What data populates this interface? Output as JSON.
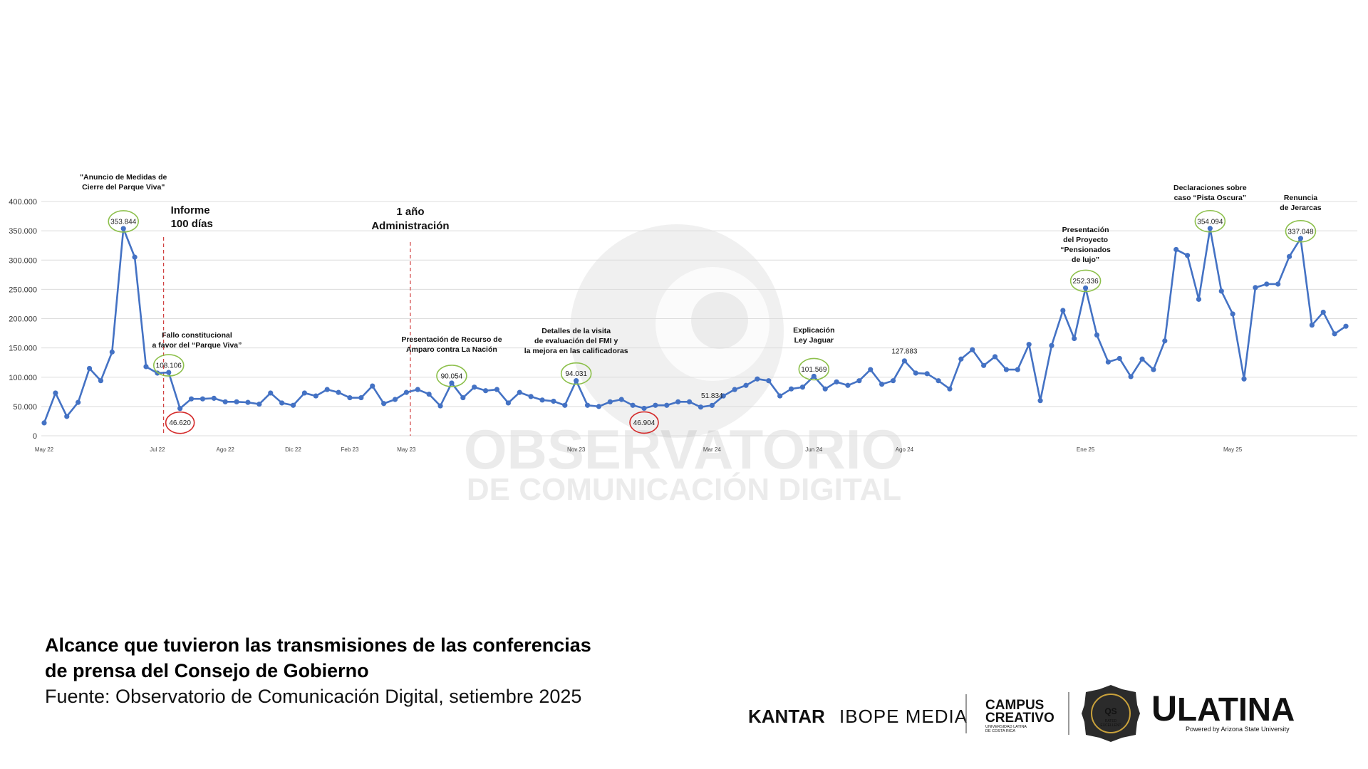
{
  "chart_data": {
    "type": "line",
    "categories": [
      "May 22",
      null,
      null,
      null,
      null,
      null,
      null,
      null,
      null,
      null,
      "Jul 22",
      null,
      null,
      null,
      null,
      null,
      "Ago 22",
      null,
      null,
      null,
      null,
      null,
      "Dic 22",
      null,
      null,
      null,
      null,
      "Feb 23",
      null,
      null,
      null,
      null,
      "May 23",
      null,
      null,
      null,
      null,
      null,
      null,
      null,
      null,
      null,
      null,
      null,
      null,
      null,
      null,
      "Nov 23",
      null,
      null,
      null,
      null,
      null,
      null,
      null,
      null,
      null,
      null,
      null,
      "Mar 24",
      null,
      null,
      null,
      null,
      null,
      null,
      null,
      null,
      "Jun 24",
      null,
      null,
      null,
      null,
      null,
      null,
      null,
      "Ago 24",
      null,
      null,
      null,
      null,
      null,
      null,
      null,
      null,
      null,
      null,
      null,
      null,
      null,
      null,
      null,
      "Ene 25",
      null,
      null,
      null,
      null,
      null,
      null,
      null,
      null,
      null,
      null,
      null,
      null,
      "May 25",
      null,
      null,
      null,
      null,
      null,
      null,
      null,
      null,
      null,
      null
    ],
    "series": [
      {
        "color": "#4472c4",
        "values": [
          22000,
          73000,
          33000,
          57000,
          115000,
          94000,
          143000,
          353844,
          305000,
          118000,
          107000,
          108106,
          46620,
          63000,
          63000,
          64000,
          58000,
          58000,
          57000,
          54000,
          73000,
          56000,
          52000,
          73000,
          68000,
          79000,
          74000,
          65000,
          65000,
          85000,
          55000,
          62000,
          74000,
          79000,
          71000,
          51000,
          90054,
          65000,
          83000,
          77000,
          79000,
          56000,
          74000,
          67000,
          61000,
          59000,
          52000,
          94031,
          52000,
          50000,
          58000,
          62000,
          52000,
          46904,
          52000,
          52000,
          58000,
          58000,
          49000,
          51834,
          68000,
          79000,
          86000,
          97000,
          94000,
          68000,
          80000,
          83000,
          101569,
          80000,
          92000,
          86000,
          94000,
          113000,
          88000,
          94000,
          127883,
          107000,
          106000,
          94000,
          80000,
          131000,
          147000,
          120000,
          135000,
          113000,
          113000,
          156000,
          60000,
          154000,
          214000,
          166000,
          252336,
          172000,
          126000,
          132000,
          101000,
          131000,
          113000,
          162000,
          318000,
          308000,
          233000,
          354094,
          247000,
          208000,
          97000,
          253000,
          259000,
          259000,
          306000,
          337048,
          189000,
          211000,
          174000,
          187000
        ],
        "value_labels": [
          null,
          null,
          null,
          null,
          null,
          null,
          null,
          "353.844",
          null,
          null,
          null,
          "108.106",
          "46.620",
          null,
          null,
          null,
          null,
          null,
          null,
          null,
          null,
          null,
          null,
          null,
          null,
          null,
          null,
          null,
          null,
          null,
          null,
          null,
          null,
          null,
          null,
          null,
          "90.054",
          null,
          null,
          null,
          null,
          null,
          null,
          null,
          null,
          null,
          null,
          "94.031",
          null,
          null,
          null,
          null,
          null,
          "46.904",
          null,
          null,
          null,
          null,
          null,
          "51.834",
          null,
          null,
          null,
          null,
          null,
          null,
          null,
          null,
          "101.569",
          null,
          null,
          null,
          null,
          null,
          null,
          null,
          "127.883",
          null,
          null,
          null,
          null,
          null,
          null,
          null,
          null,
          null,
          null,
          null,
          null,
          null,
          null,
          null,
          "252.336",
          null,
          null,
          null,
          null,
          null,
          null,
          null,
          null,
          null,
          null,
          "354.094",
          null,
          null,
          null,
          null,
          null,
          null,
          null,
          "337.048",
          null,
          null,
          null,
          null
        ],
        "label_circle_colors": [
          null,
          null,
          null,
          null,
          null,
          null,
          null,
          "#8dc04c",
          null,
          null,
          null,
          "#8dc04c",
          "#d42a2a",
          null,
          null,
          null,
          null,
          null,
          null,
          null,
          null,
          null,
          null,
          null,
          null,
          null,
          null,
          null,
          null,
          null,
          null,
          null,
          null,
          null,
          null,
          null,
          "#8dc04c",
          null,
          null,
          null,
          null,
          null,
          null,
          null,
          null,
          null,
          null,
          "#8dc04c",
          null,
          null,
          null,
          null,
          null,
          "#d42a2a",
          null,
          null,
          null,
          null,
          null,
          null,
          null,
          null,
          null,
          null,
          null,
          null,
          null,
          null,
          "#8dc04c",
          null,
          null,
          null,
          null,
          null,
          null,
          null,
          null,
          null,
          null,
          null,
          null,
          null,
          null,
          null,
          null,
          null,
          null,
          null,
          null,
          null,
          null,
          null,
          "#8dc04c",
          null,
          null,
          null,
          null,
          null,
          null,
          null,
          null,
          null,
          null,
          "#8dc04c",
          null,
          null,
          null,
          null,
          null,
          null,
          null,
          "#8dc04c",
          null,
          null,
          null,
          null
        ]
      }
    ],
    "ylim": [
      0,
      400000
    ],
    "yticks": [
      0,
      {
        "value": 50000,
        "label": "50.000"
      },
      {
        "value": 100000,
        "label": "100.000"
      },
      {
        "value": 150000,
        "label": "150.000"
      },
      {
        "value": 200000,
        "label": "200.000"
      },
      {
        "value": 250000,
        "label": "250.000"
      },
      {
        "value": 300000,
        "label": "300.000"
      },
      {
        "value": 350000,
        "label": "350.000"
      },
      {
        "value": 400000,
        "label": "400.000"
      }
    ],
    "grid": true,
    "annotations": [
      [
        "\"Anuncio de Medidas de",
        "Cierre del Parque Viva\""
      ],
      [
        "Informe",
        "100 días"
      ],
      [
        "Fallo constitucional",
        "a favor del “Parque Viva”"
      ],
      [
        "1 año",
        "Administración"
      ],
      [
        "Presentación de Recurso de",
        "Amparo contra La Nación"
      ],
      [
        "Detalles de la visita",
        "de evaluación del FMI y",
        "la mejora en las calificadoras"
      ],
      [
        "Explicación",
        "Ley Jaguar"
      ],
      [
        "Presentación",
        "del Proyecto",
        "“Pensionados",
        "de lujo”"
      ],
      [
        "Declaraciones sobre",
        "caso “Pista Oscura”"
      ],
      [
        "Renuncia",
        "de Jerarcas"
      ]
    ],
    "watermark": [
      "OBSERVATORIO",
      "DE COMUNICACIÓN DIGITAL"
    ]
  },
  "footer": {
    "title": [
      "Alcance que tuvieron las transmisiones de las conferencias",
      "de prensa del Consejo de Gobierno"
    ],
    "source": "Fuente: Observatorio de Comunicación Digital, setiembre 2025"
  },
  "logos": {
    "kantar": "KANTAR",
    "ibope": "IBOPE MEDIA",
    "campus": [
      "CAMPUS",
      "CREATIVO"
    ],
    "campus_sub": [
      "UNIVERSIDAD LATINA",
      "DE COSTA RICA"
    ],
    "badge": [
      "QS",
      "RATED",
      "EXCELLENT"
    ],
    "ulatina_u": "U",
    "ulatina_rest": "LATINA",
    "powered": "Powered by Arizona State University"
  }
}
